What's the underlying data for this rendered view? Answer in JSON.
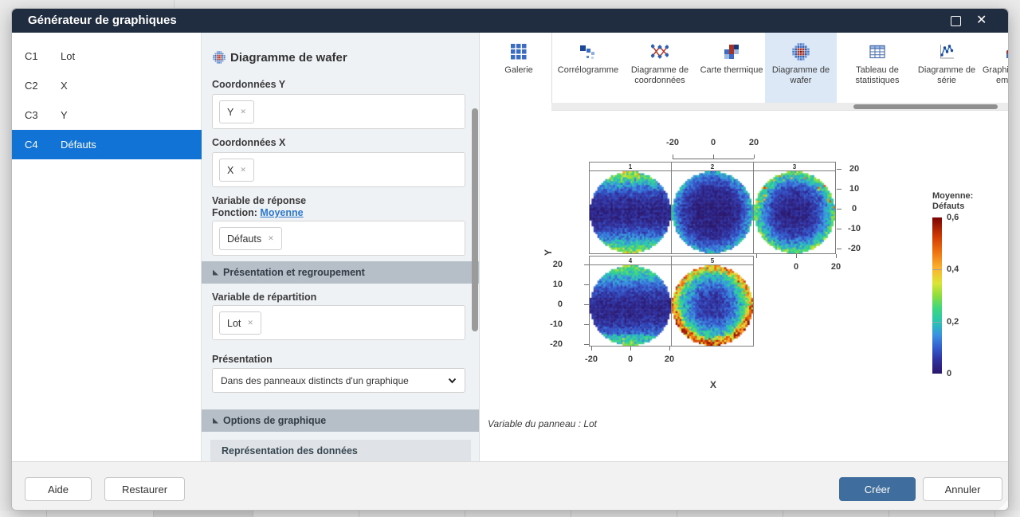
{
  "theme": {
    "titlebar_bg": "#202c3f",
    "selection_blue": "#1273d6",
    "primary_button_bg": "#3e6d9e",
    "link_blue": "#2e77d0",
    "gallery_selected_bg": "#dce8f6"
  },
  "icons": {
    "close": "✕"
  },
  "app": {
    "window_title": "Générateur de graphiques"
  },
  "worksheet_columns": [
    {
      "id": "C1",
      "name": "Lot",
      "selected": false
    },
    {
      "id": "C2",
      "name": "X",
      "selected": false
    },
    {
      "id": "C3",
      "name": "Y",
      "selected": false
    },
    {
      "id": "C4",
      "name": "Défauts",
      "selected": true
    }
  ],
  "builder": {
    "heading": "Diagramme de wafer",
    "coord_y_label": "Coordonnées Y",
    "coord_y_chip": "Y",
    "coord_x_label": "Coordonnées X",
    "coord_x_chip": "X",
    "response_label": "Variable de réponse",
    "function_label": "Fonction:",
    "function_value": "Moyenne",
    "response_chip": "Défauts",
    "section_presentation": "Présentation et regroupement",
    "split_label": "Variable de répartition",
    "split_chip": "Lot",
    "presentation_label": "Présentation",
    "presentation_value": "Dans des panneaux distincts d'un graphique",
    "section_options": "Options de graphique",
    "subsection_data_display": "Représentation des données"
  },
  "gallery": {
    "items": [
      {
        "label": "Galerie",
        "icon": "gallery",
        "selected": false
      },
      {
        "label": "Corrélogramme",
        "icon": "correlogram",
        "selected": false
      },
      {
        "label": "Diagramme de coordonnées",
        "icon": "parallel",
        "selected": false
      },
      {
        "label": "Carte thermique",
        "icon": "heatmap",
        "selected": false
      },
      {
        "label": "Diagramme de wafer",
        "icon": "wafer",
        "selected": true
      },
      {
        "label": "Tableau de statistiques",
        "icon": "table",
        "selected": false
      },
      {
        "label": "Diagramme de série",
        "icon": "series",
        "selected": false
      },
      {
        "label": "Graphique aires empilées",
        "icon": "area",
        "selected": false
      }
    ]
  },
  "chart_data": {
    "type": "heatmap",
    "subtype": "wafer_map_small_multiples",
    "xlabel": "X",
    "ylabel": "Y",
    "xlim": [
      -25,
      25
    ],
    "ylim": [
      -25,
      25
    ],
    "x_tick_labels": [
      "-20",
      "0",
      "20"
    ],
    "y_tick_labels": [
      "20",
      "10",
      "0",
      "-10",
      "-20"
    ],
    "col3_bottom_tick_labels": [
      "0",
      "20"
    ],
    "panel_labels": [
      "1",
      "2",
      "3",
      "4",
      "5"
    ],
    "footnote": "Variable du panneau : Lot",
    "legend": {
      "title_lines": [
        "Moyenne:",
        "Défauts"
      ],
      "tick_labels": [
        "0,6",
        "0,4",
        "0,2",
        "0"
      ],
      "min": 0,
      "max": 0.6
    },
    "colormap": [
      [
        0.0,
        "#2a176b"
      ],
      [
        0.09,
        "#3132a0"
      ],
      [
        0.17,
        "#355fd0"
      ],
      [
        0.25,
        "#3b93e1"
      ],
      [
        0.33,
        "#27c5b2"
      ],
      [
        0.42,
        "#3fd77e"
      ],
      [
        0.5,
        "#8ede3b"
      ],
      [
        0.58,
        "#dbe436"
      ],
      [
        0.67,
        "#fbb52f"
      ],
      [
        0.78,
        "#ee7211"
      ],
      [
        0.88,
        "#cf3a04"
      ],
      [
        1.0,
        "#7a0403"
      ]
    ],
    "panels": [
      {
        "label": "1",
        "row": 0,
        "col": 0,
        "seed": 101,
        "pattern": {
          "type": "band",
          "base": 0.03,
          "amp": 0.3,
          "exp": 2.2,
          "cy": 0,
          "speck": {
            "zone": "top",
            "chance": 0.08,
            "add": 0.12
          }
        }
      },
      {
        "label": "2",
        "row": 0,
        "col": 1,
        "seed": 202,
        "pattern": {
          "type": "radial",
          "base": 0.02,
          "amp": 0.16,
          "exp": 3.6
        }
      },
      {
        "label": "3",
        "row": 0,
        "col": 2,
        "seed": 303,
        "pattern": {
          "type": "radial",
          "base": 0.03,
          "amp": 0.24,
          "exp": 3.0,
          "speck": {
            "zone": "edge_top",
            "chance": 0.1,
            "add": 0.2
          }
        }
      },
      {
        "label": "4",
        "row": 1,
        "col": 0,
        "seed": 404,
        "pattern": {
          "type": "band",
          "base": 0.03,
          "amp": 0.22,
          "exp": 2.0,
          "cy": -2,
          "bottom_boost": 0.05,
          "speck": {
            "zone": "bottom",
            "chance": 0.05,
            "add": 0.08
          }
        }
      },
      {
        "label": "5",
        "row": 1,
        "col": 1,
        "seed": 505,
        "pattern": {
          "type": "radial",
          "base": 0.05,
          "amp": 0.3,
          "exp": 2.2,
          "ring_boost": 0.08,
          "south_boost": 0.07,
          "speck": {
            "zone": "edge",
            "chance": 0.06,
            "add": 0.14
          }
        }
      }
    ]
  },
  "footer": {
    "help": "Aide",
    "restore": "Restaurer",
    "create": "Créer",
    "cancel": "Annuler"
  }
}
